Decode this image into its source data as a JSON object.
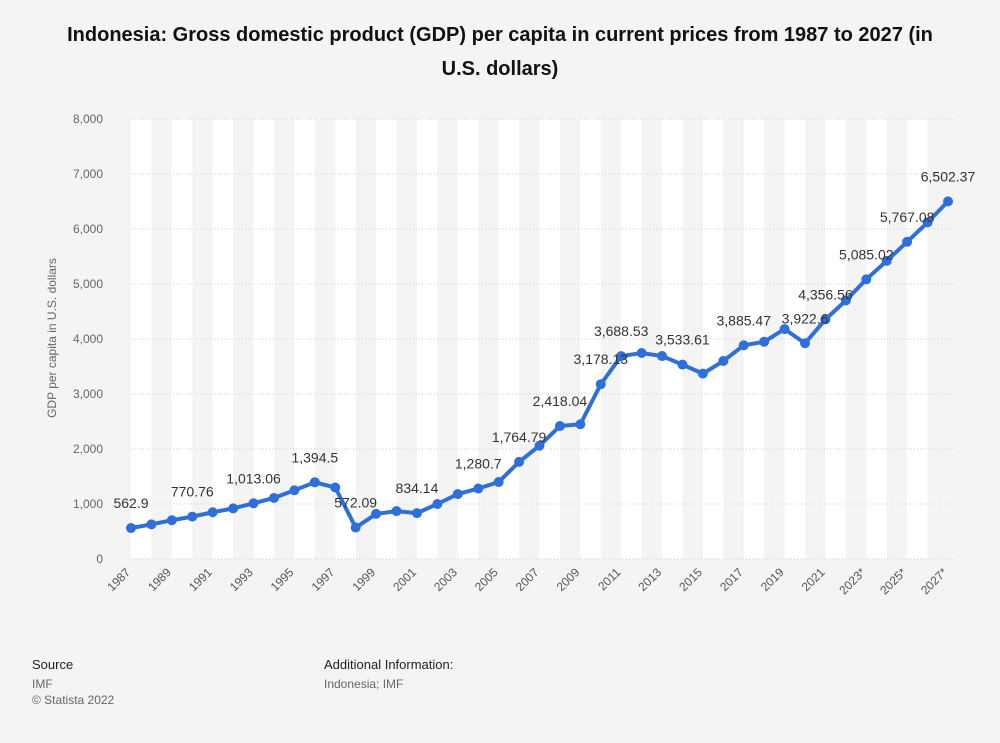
{
  "chart_data": {
    "type": "line",
    "title": "Indonesia: Gross domestic product (GDP) per capita in current prices from 1987 to 2027 (in U.S. dollars)",
    "xlabel": "",
    "ylabel": "GDP per capita in U.S. dollars",
    "ylim": [
      0,
      8000
    ],
    "yticks": [
      0,
      1000,
      2000,
      3000,
      4000,
      5000,
      6000,
      7000,
      8000
    ],
    "ytick_labels": [
      "0",
      "1,000",
      "2,000",
      "3,000",
      "4,000",
      "5,000",
      "6,000",
      "7,000",
      "8,000"
    ],
    "categories": [
      "1987",
      "1988",
      "1989",
      "1990",
      "1991",
      "1992",
      "1993",
      "1994",
      "1995",
      "1996",
      "1997",
      "1998",
      "1999",
      "2000",
      "2001",
      "2002",
      "2003",
      "2004",
      "2005",
      "2006",
      "2007",
      "2008",
      "2009",
      "2010",
      "2011",
      "2012",
      "2013",
      "2014",
      "2015",
      "2016",
      "2017",
      "2018",
      "2019",
      "2020",
      "2021",
      "2022",
      "2023*",
      "2024*",
      "2025*",
      "2026*",
      "2027*"
    ],
    "xtick_labels": [
      "1987",
      "1989",
      "1991",
      "1993",
      "1995",
      "1997",
      "1999",
      "2001",
      "2003",
      "2005",
      "2007",
      "2009",
      "2011",
      "2013",
      "2015",
      "2017",
      "2019",
      "2021",
      "2023*",
      "2025*",
      "2027*"
    ],
    "series": [
      {
        "values": [
          562.9,
          630,
          705,
          770.76,
          850,
          920,
          1013.06,
          1110,
          1250,
          1394.5,
          1300,
          572.09,
          820,
          870,
          834.14,
          1000,
          1180,
          1280.7,
          1400,
          1764.79,
          2060,
          2418.04,
          2450,
          3178.13,
          3688.53,
          3745,
          3690,
          3533.61,
          3370,
          3600,
          3885.47,
          3950,
          4180,
          3922.6,
          4356.56,
          4700,
          5085.02,
          5420,
          5767.08,
          6120,
          6502.37
        ],
        "labels": [
          "562.9",
          "",
          "",
          "770.76",
          "",
          "",
          "1,013.06",
          "",
          "",
          "1,394.5",
          "",
          "572.09",
          "",
          "",
          "834.14",
          "",
          "",
          "1,280.7",
          "",
          "1,764.79",
          "",
          "2,418.04",
          "",
          "3,178.13",
          "3,688.53",
          "",
          "",
          "3,533.61",
          "",
          "",
          "3,885.47",
          "",
          "",
          "3,922.6",
          "4,356.56",
          "",
          "5,085.02",
          "",
          "5,767.08",
          "",
          "6,502.37"
        ]
      }
    ],
    "grid": true,
    "line_color": "#2f6fdc"
  },
  "footer": {
    "source_heading": "Source",
    "source_name": "IMF",
    "copyright": "© Statista 2022",
    "additional_heading": "Additional Information:",
    "additional_text": "Indonesia; IMF"
  }
}
